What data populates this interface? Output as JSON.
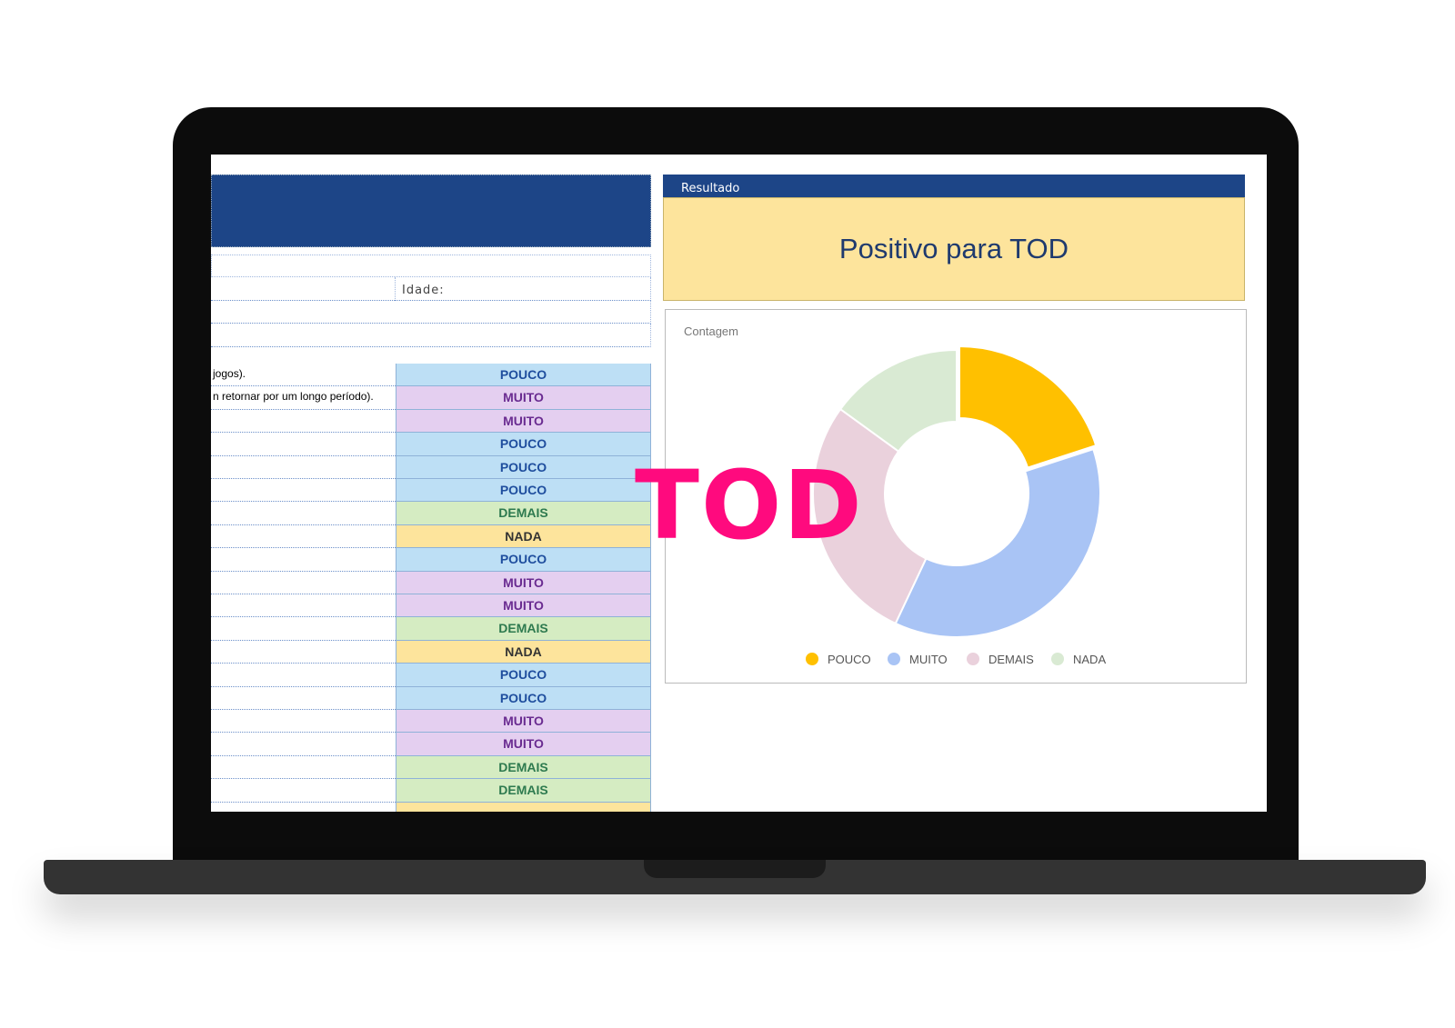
{
  "sheet": {
    "idade_label": "Idade:",
    "question_fragments": [
      "jogos).",
      "n retornar por um longo período)."
    ],
    "answers": [
      "POUCO",
      "MUITO",
      "MUITO",
      "POUCO",
      "POUCO",
      "POUCO",
      "DEMAIS",
      "NADA",
      "POUCO",
      "MUITO",
      "MUITO",
      "DEMAIS",
      "NADA",
      "POUCO",
      "POUCO",
      "MUITO",
      "MUITO",
      "DEMAIS",
      "DEMAIS"
    ]
  },
  "result": {
    "header": "Resultado",
    "text": "Positivo para TOD"
  },
  "overlay": "TOD",
  "chart_data": {
    "type": "pie",
    "donut": true,
    "title": "Contagem",
    "categories": [
      "POUCO",
      "MUITO",
      "DEMAIS",
      "NADA"
    ],
    "values": [
      20,
      37,
      28,
      15
    ],
    "colors": [
      "#ffc000",
      "#a9c4f5",
      "#ead1dc",
      "#d9ead3"
    ],
    "legend": "bottom"
  }
}
